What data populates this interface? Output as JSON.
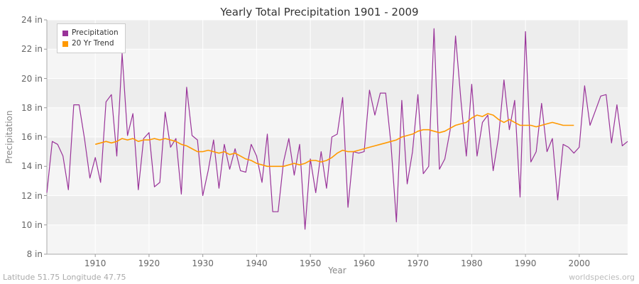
{
  "chart": {
    "title": "Yearly Total Precipitation 1901 - 2009",
    "xlabel": "Year",
    "ylabel": "Precipitation"
  },
  "footer": {
    "left": "Latitude 51.75 Longitude 47.75",
    "right": "worldspecies.org"
  },
  "chart_data": {
    "type": "line",
    "title": "Yearly Total Precipitation 1901 - 2009",
    "xlabel": "Year",
    "ylabel": "Precipitation",
    "xlim": [
      1901,
      2009
    ],
    "ylim": [
      8,
      24
    ],
    "y_tick_step": 2,
    "y_tick_suffix": " in",
    "x_ticks": [
      1910,
      1920,
      1930,
      1940,
      1950,
      1960,
      1970,
      1980,
      1990,
      2000
    ],
    "grid": true,
    "legend_position": "top-left",
    "plot_bg_band_a": "#ededed",
    "plot_bg_band_b": "#f5f5f5",
    "grid_color": "#ffffff",
    "axis_color": "#aaaaaa",
    "series": [
      {
        "name": "Precipitation",
        "color": "#993399",
        "start_x": 1901,
        "values": [
          12.2,
          15.7,
          15.5,
          14.7,
          12.4,
          18.2,
          18.2,
          15.9,
          13.2,
          14.6,
          12.9,
          18.4,
          18.9,
          14.7,
          21.7,
          16.1,
          17.6,
          12.4,
          15.9,
          16.3,
          12.6,
          12.9,
          17.7,
          15.3,
          15.9,
          12.1,
          19.4,
          16.1,
          15.8,
          12.0,
          13.7,
          15.8,
          12.5,
          15.5,
          13.8,
          15.2,
          13.7,
          13.6,
          15.5,
          14.7,
          12.9,
          16.2,
          10.9,
          10.9,
          14.3,
          15.9,
          13.4,
          15.5,
          9.7,
          14.5,
          12.2,
          15.0,
          12.5,
          16.0,
          16.2,
          18.7,
          11.2,
          15.0,
          14.9,
          15.0,
          19.2,
          17.5,
          19.0,
          19.0,
          15.5,
          10.2,
          18.5,
          12.8,
          15.0,
          18.9,
          13.5,
          14.0,
          23.4,
          13.8,
          14.5,
          16.5,
          22.9,
          18.5,
          14.7,
          19.6,
          14.7,
          17.0,
          17.5,
          13.7,
          16.0,
          19.9,
          16.5,
          18.5,
          11.9,
          23.2,
          14.3,
          15.0,
          18.3,
          15.0,
          15.9,
          11.7,
          15.5,
          15.3,
          14.9,
          15.3,
          19.5,
          16.8,
          17.8,
          18.8,
          18.9,
          15.6,
          18.2,
          15.4,
          15.7
        ]
      },
      {
        "name": "20 Yr Trend",
        "color": "#ff9900",
        "start_x": 1910,
        "values": [
          15.5,
          15.6,
          15.7,
          15.6,
          15.7,
          15.9,
          15.8,
          15.9,
          15.7,
          15.8,
          15.8,
          15.9,
          15.8,
          15.9,
          15.8,
          15.7,
          15.5,
          15.4,
          15.2,
          15.0,
          15.0,
          15.1,
          15.0,
          14.9,
          15.0,
          14.8,
          14.9,
          14.7,
          14.5,
          14.4,
          14.2,
          14.1,
          14.0,
          14.0,
          14.0,
          14.0,
          14.1,
          14.2,
          14.1,
          14.2,
          14.4,
          14.4,
          14.3,
          14.4,
          14.6,
          14.9,
          15.1,
          15.0,
          15.0,
          15.1,
          15.2,
          15.3,
          15.4,
          15.5,
          15.6,
          15.7,
          15.8,
          16.0,
          16.1,
          16.2,
          16.4,
          16.5,
          16.5,
          16.4,
          16.3,
          16.4,
          16.6,
          16.8,
          16.9,
          17.0,
          17.3,
          17.5,
          17.4,
          17.6,
          17.5,
          17.2,
          17.0,
          17.2,
          17.0,
          16.8,
          16.8,
          16.8,
          16.7,
          16.8,
          16.9,
          17.0,
          16.9,
          16.8,
          16.8,
          16.8
        ]
      }
    ]
  }
}
